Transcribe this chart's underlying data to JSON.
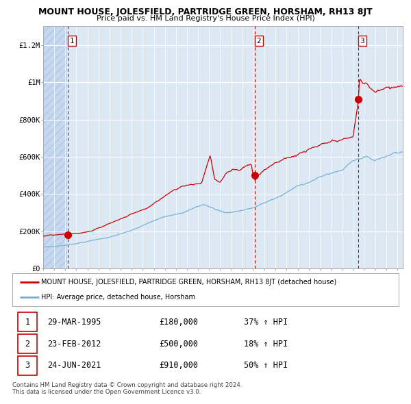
{
  "title": "MOUNT HOUSE, JOLESFIELD, PARTRIDGE GREEN, HORSHAM, RH13 8JT",
  "subtitle": "Price paid vs. HM Land Registry's House Price Index (HPI)",
  "legend_red": "MOUNT HOUSE, JOLESFIELD, PARTRIDGE GREEN, HORSHAM, RH13 8JT (detached house)",
  "legend_blue": "HPI: Average price, detached house, Horsham",
  "footer1": "Contains HM Land Registry data © Crown copyright and database right 2024.",
  "footer2": "This data is licensed under the Open Government Licence v3.0.",
  "sales": [
    {
      "num": 1,
      "date": "29-MAR-1995",
      "price": 180000,
      "hpi_pct": "37% ↑ HPI",
      "x_year": 1995.23
    },
    {
      "num": 2,
      "date": "23-FEB-2012",
      "price": 500000,
      "hpi_pct": "18% ↑ HPI",
      "x_year": 2012.14
    },
    {
      "num": 3,
      "date": "24-JUN-2021",
      "price": 910000,
      "hpi_pct": "50% ↑ HPI",
      "x_year": 2021.48
    }
  ],
  "ylim": [
    0,
    1300000
  ],
  "xlim_start": 1993.0,
  "xlim_end": 2025.5,
  "hatch_end": 1995.23,
  "background_color": "#dce9f5",
  "hatch_color": "#c5d8ee",
  "grid_color": "#ffffff",
  "red_line_color": "#cc0000",
  "blue_line_color": "#7aafd4",
  "dashed_line_color": "#cc0000",
  "sale_marker_color": "#cc0000",
  "ytick_labels": [
    "£0",
    "£200K",
    "£400K",
    "£600K",
    "£800K",
    "£1M",
    "£1.2M"
  ],
  "ytick_values": [
    0,
    200000,
    400000,
    600000,
    800000,
    1000000,
    1200000
  ]
}
